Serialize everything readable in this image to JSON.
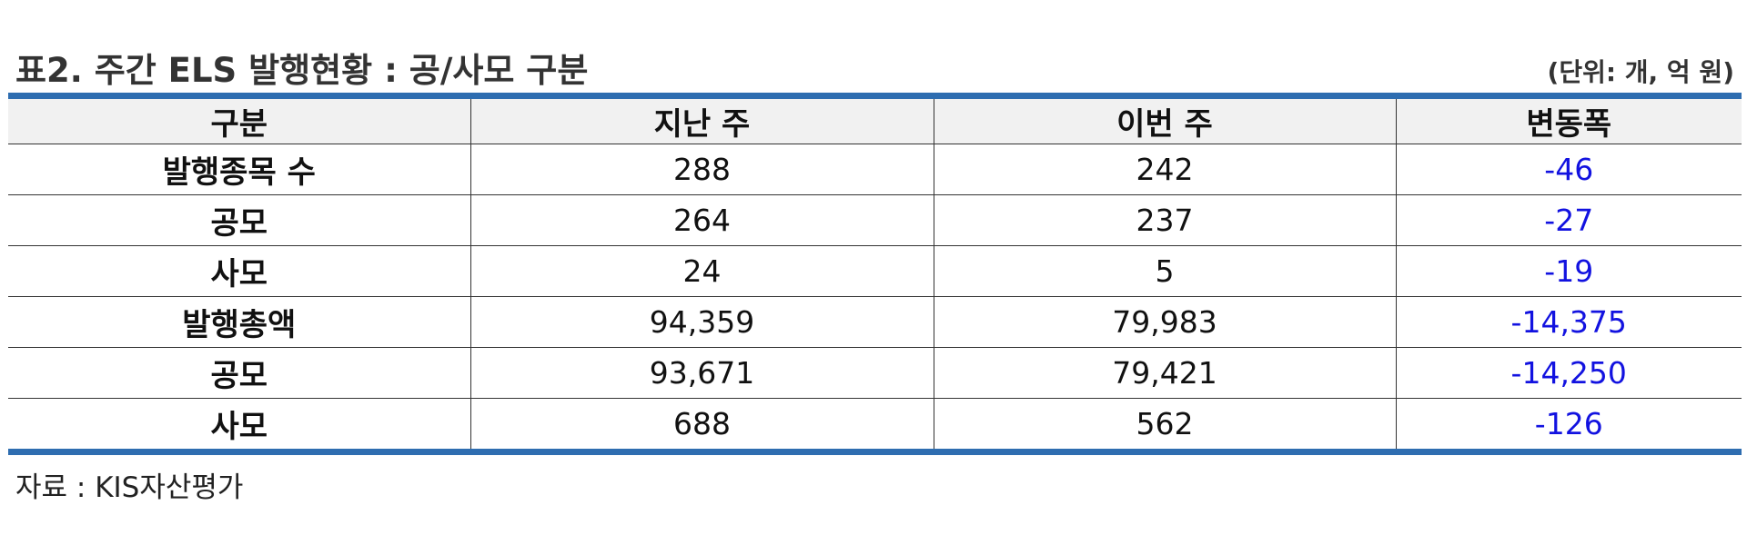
{
  "header": {
    "title": "표2. 주간 ELS 발행현황 : 공/사모 구분",
    "unit": "(단위: 개, 억 원)"
  },
  "table": {
    "columns": [
      "구분",
      "지난 주",
      "이번 주",
      "변동폭"
    ],
    "rows": [
      {
        "label": "발행종목 수",
        "prev": "288",
        "curr": "242",
        "change": "-46"
      },
      {
        "label": "공모",
        "prev": "264",
        "curr": "237",
        "change": "-27"
      },
      {
        "label": "사모",
        "prev": "24",
        "curr": "5",
        "change": "-19"
      },
      {
        "label": "발행총액",
        "prev": "94,359",
        "curr": "79,983",
        "change": "-14,375"
      },
      {
        "label": "공모",
        "prev": "93,671",
        "curr": "79,421",
        "change": "-14,250"
      },
      {
        "label": "사모",
        "prev": "688",
        "curr": "562",
        "change": "-126"
      }
    ]
  },
  "source": "자료 : KIS자산평가",
  "colors": {
    "rule": "#2e6db0",
    "header_bg": "#f1f1f1",
    "change_text": "#1212e0"
  }
}
